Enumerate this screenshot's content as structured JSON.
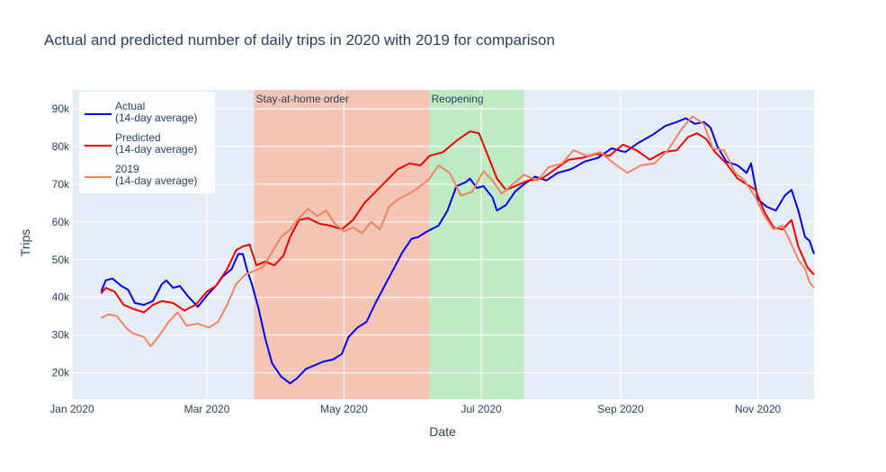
{
  "chart_data": {
    "type": "line",
    "title": "Actual and predicted number of daily trips in 2020 with 2019 for comparison",
    "xlabel": "Date",
    "ylabel": "Trips",
    "xlim": [
      "2020-01-01",
      "2020-11-26"
    ],
    "ylim": [
      13000,
      95000
    ],
    "x_ticks": [
      {
        "date": "2020-01-01",
        "label": "Jan 2020"
      },
      {
        "date": "2020-03-01",
        "label": "Mar 2020"
      },
      {
        "date": "2020-05-01",
        "label": "May 2020"
      },
      {
        "date": "2020-07-01",
        "label": "Jul 2020"
      },
      {
        "date": "2020-09-01",
        "label": "Sep 2020"
      },
      {
        "date": "2020-11-01",
        "label": "Nov 2020"
      }
    ],
    "y_ticks": [
      {
        "value": 20000,
        "label": "20k"
      },
      {
        "value": 30000,
        "label": "30k"
      },
      {
        "value": 40000,
        "label": "40k"
      },
      {
        "value": 50000,
        "label": "50k"
      },
      {
        "value": 60000,
        "label": "60k"
      },
      {
        "value": 70000,
        "label": "70k"
      },
      {
        "value": 80000,
        "label": "80k"
      },
      {
        "value": 90000,
        "label": "90k"
      }
    ],
    "shaded_regions": [
      {
        "label": "Stay-at-home order",
        "start": "2020-03-22",
        "end": "2020-06-08",
        "color": "#f4c4b4"
      },
      {
        "label": "Reopening",
        "start": "2020-06-08",
        "end": "2020-07-20",
        "color": "#bdebc4"
      }
    ],
    "legend_position": "top-left",
    "grid": true,
    "series": [
      {
        "name": "Actual",
        "legend_lines": [
          "Actual",
          "(14-day average)"
        ],
        "color": "#0000ee",
        "points": [
          [
            "2020-01-14",
            41500
          ],
          [
            "2020-01-16",
            44500
          ],
          [
            "2020-01-19",
            45000
          ],
          [
            "2020-01-23",
            43000
          ],
          [
            "2020-01-26",
            42000
          ],
          [
            "2020-01-29",
            38500
          ],
          [
            "2020-02-02",
            38000
          ],
          [
            "2020-02-06",
            39000
          ],
          [
            "2020-02-10",
            43500
          ],
          [
            "2020-02-12",
            44500
          ],
          [
            "2020-02-15",
            42500
          ],
          [
            "2020-02-18",
            43000
          ],
          [
            "2020-02-22",
            40000
          ],
          [
            "2020-02-26",
            37500
          ],
          [
            "2020-03-01",
            40500
          ],
          [
            "2020-03-05",
            43000
          ],
          [
            "2020-03-08",
            45500
          ],
          [
            "2020-03-12",
            47500
          ],
          [
            "2020-03-15",
            51500
          ],
          [
            "2020-03-17",
            51500
          ],
          [
            "2020-03-19",
            47000
          ],
          [
            "2020-03-21",
            43500
          ],
          [
            "2020-03-24",
            37000
          ],
          [
            "2020-03-27",
            29000
          ],
          [
            "2020-03-30",
            22500
          ],
          [
            "2020-04-03",
            19000
          ],
          [
            "2020-04-07",
            17200
          ],
          [
            "2020-04-10",
            18500
          ],
          [
            "2020-04-14",
            21000
          ],
          [
            "2020-04-18",
            22000
          ],
          [
            "2020-04-22",
            23000
          ],
          [
            "2020-04-26",
            23500
          ],
          [
            "2020-04-30",
            25000
          ],
          [
            "2020-05-03",
            29500
          ],
          [
            "2020-05-07",
            32000
          ],
          [
            "2020-05-11",
            33500
          ],
          [
            "2020-05-15",
            38500
          ],
          [
            "2020-05-19",
            43000
          ],
          [
            "2020-05-23",
            47500
          ],
          [
            "2020-05-27",
            52000
          ],
          [
            "2020-05-31",
            55500
          ],
          [
            "2020-06-03",
            56000
          ],
          [
            "2020-06-07",
            57500
          ],
          [
            "2020-06-12",
            59000
          ],
          [
            "2020-06-16",
            63000
          ],
          [
            "2020-06-20",
            69500
          ],
          [
            "2020-06-24",
            70500
          ],
          [
            "2020-06-26",
            71500
          ],
          [
            "2020-06-29",
            69000
          ],
          [
            "2020-07-02",
            69500
          ],
          [
            "2020-07-06",
            66500
          ],
          [
            "2020-07-08",
            63000
          ],
          [
            "2020-07-12",
            64500
          ],
          [
            "2020-07-16",
            68000
          ],
          [
            "2020-07-20",
            70000
          ],
          [
            "2020-07-25",
            72000
          ],
          [
            "2020-07-30",
            71000
          ],
          [
            "2020-08-04",
            73000
          ],
          [
            "2020-08-10",
            74000
          ],
          [
            "2020-08-16",
            76000
          ],
          [
            "2020-08-22",
            77000
          ],
          [
            "2020-08-28",
            79500
          ],
          [
            "2020-09-03",
            78500
          ],
          [
            "2020-09-09",
            81000
          ],
          [
            "2020-09-15",
            83000
          ],
          [
            "2020-09-21",
            85500
          ],
          [
            "2020-09-26",
            86500
          ],
          [
            "2020-09-30",
            87500
          ],
          [
            "2020-10-04",
            86000
          ],
          [
            "2020-10-08",
            86500
          ],
          [
            "2020-10-11",
            85000
          ],
          [
            "2020-10-14",
            80000
          ],
          [
            "2020-10-18",
            76000
          ],
          [
            "2020-10-23",
            75000
          ],
          [
            "2020-10-27",
            73000
          ],
          [
            "2020-10-29",
            75500
          ],
          [
            "2020-11-01",
            66000
          ],
          [
            "2020-11-05",
            64000
          ],
          [
            "2020-11-09",
            63000
          ],
          [
            "2020-11-13",
            67000
          ],
          [
            "2020-11-16",
            68500
          ],
          [
            "2020-11-19",
            63000
          ],
          [
            "2020-11-22",
            56000
          ],
          [
            "2020-11-24",
            55000
          ],
          [
            "2020-11-26",
            51500
          ]
        ]
      },
      {
        "name": "Predicted",
        "legend_lines": [
          "Predicted",
          "(14-day average)"
        ],
        "color": "#ee0000",
        "points": [
          [
            "2020-01-14",
            41000
          ],
          [
            "2020-01-16",
            42500
          ],
          [
            "2020-01-20",
            41500
          ],
          [
            "2020-01-24",
            38000
          ],
          [
            "2020-01-28",
            37000
          ],
          [
            "2020-02-02",
            36000
          ],
          [
            "2020-02-06",
            38000
          ],
          [
            "2020-02-10",
            39000
          ],
          [
            "2020-02-15",
            38500
          ],
          [
            "2020-02-20",
            36500
          ],
          [
            "2020-02-25",
            38000
          ],
          [
            "2020-03-01",
            41500
          ],
          [
            "2020-03-05",
            43000
          ],
          [
            "2020-03-10",
            47500
          ],
          [
            "2020-03-14",
            52500
          ],
          [
            "2020-03-17",
            53500
          ],
          [
            "2020-03-20",
            54000
          ],
          [
            "2020-03-23",
            48500
          ],
          [
            "2020-03-27",
            49500
          ],
          [
            "2020-03-31",
            48500
          ],
          [
            "2020-04-04",
            51000
          ],
          [
            "2020-04-07",
            56000
          ],
          [
            "2020-04-11",
            60500
          ],
          [
            "2020-04-15",
            61000
          ],
          [
            "2020-04-20",
            59500
          ],
          [
            "2020-04-25",
            59000
          ],
          [
            "2020-04-30",
            58000
          ],
          [
            "2020-05-05",
            60500
          ],
          [
            "2020-05-10",
            65000
          ],
          [
            "2020-05-15",
            68000
          ],
          [
            "2020-05-20",
            71000
          ],
          [
            "2020-05-25",
            74000
          ],
          [
            "2020-05-30",
            75500
          ],
          [
            "2020-06-04",
            75000
          ],
          [
            "2020-06-08",
            77500
          ],
          [
            "2020-06-14",
            78500
          ],
          [
            "2020-06-20",
            81500
          ],
          [
            "2020-06-26",
            84000
          ],
          [
            "2020-06-30",
            83500
          ],
          [
            "2020-07-04",
            77500
          ],
          [
            "2020-07-08",
            71500
          ],
          [
            "2020-07-12",
            68500
          ],
          [
            "2020-07-16",
            69500
          ],
          [
            "2020-07-22",
            71000
          ],
          [
            "2020-07-28",
            71500
          ],
          [
            "2020-08-03",
            74000
          ],
          [
            "2020-08-09",
            76500
          ],
          [
            "2020-08-15",
            77000
          ],
          [
            "2020-08-21",
            78000
          ],
          [
            "2020-08-27",
            77500
          ],
          [
            "2020-09-02",
            80500
          ],
          [
            "2020-09-08",
            79000
          ],
          [
            "2020-09-14",
            76500
          ],
          [
            "2020-09-20",
            78500
          ],
          [
            "2020-09-26",
            79000
          ],
          [
            "2020-10-01",
            82500
          ],
          [
            "2020-10-05",
            83500
          ],
          [
            "2020-10-09",
            82000
          ],
          [
            "2020-10-13",
            78500
          ],
          [
            "2020-10-18",
            75500
          ],
          [
            "2020-10-23",
            71500
          ],
          [
            "2020-10-27",
            70000
          ],
          [
            "2020-10-31",
            68500
          ],
          [
            "2020-11-04",
            62500
          ],
          [
            "2020-11-08",
            58500
          ],
          [
            "2020-11-12",
            58000
          ],
          [
            "2020-11-16",
            60500
          ],
          [
            "2020-11-19",
            53500
          ],
          [
            "2020-11-23",
            48000
          ],
          [
            "2020-11-26",
            46000
          ]
        ]
      },
      {
        "name": "2019",
        "legend_lines": [
          "2019",
          "(14-day average)"
        ],
        "color": "#f4845f",
        "points": [
          [
            "2020-01-14",
            34500
          ],
          [
            "2020-01-17",
            35500
          ],
          [
            "2020-01-21",
            35000
          ],
          [
            "2020-01-25",
            32000
          ],
          [
            "2020-01-28",
            30500
          ],
          [
            "2020-02-02",
            29500
          ],
          [
            "2020-02-05",
            27000
          ],
          [
            "2020-02-09",
            30000
          ],
          [
            "2020-02-13",
            33500
          ],
          [
            "2020-02-17",
            36000
          ],
          [
            "2020-02-21",
            32500
          ],
          [
            "2020-02-26",
            33000
          ],
          [
            "2020-03-02",
            32000
          ],
          [
            "2020-03-06",
            33500
          ],
          [
            "2020-03-10",
            38000
          ],
          [
            "2020-03-14",
            43500
          ],
          [
            "2020-03-18",
            46000
          ],
          [
            "2020-03-22",
            47000
          ],
          [
            "2020-03-26",
            48000
          ],
          [
            "2020-03-30",
            52000
          ],
          [
            "2020-04-03",
            56000
          ],
          [
            "2020-04-07",
            58000
          ],
          [
            "2020-04-11",
            61000
          ],
          [
            "2020-04-15",
            63500
          ],
          [
            "2020-04-19",
            61500
          ],
          [
            "2020-04-23",
            63000
          ],
          [
            "2020-04-27",
            59500
          ],
          [
            "2020-05-01",
            57500
          ],
          [
            "2020-05-05",
            58500
          ],
          [
            "2020-05-09",
            57000
          ],
          [
            "2020-05-13",
            60000
          ],
          [
            "2020-05-17",
            58000
          ],
          [
            "2020-05-21",
            64000
          ],
          [
            "2020-05-25",
            66000
          ],
          [
            "2020-05-30",
            67500
          ],
          [
            "2020-06-04",
            69500
          ],
          [
            "2020-06-08",
            71500
          ],
          [
            "2020-06-12",
            75000
          ],
          [
            "2020-06-17",
            73000
          ],
          [
            "2020-06-22",
            67000
          ],
          [
            "2020-06-27",
            68000
          ],
          [
            "2020-07-02",
            73500
          ],
          [
            "2020-07-06",
            71000
          ],
          [
            "2020-07-10",
            67500
          ],
          [
            "2020-07-15",
            70000
          ],
          [
            "2020-07-20",
            72500
          ],
          [
            "2020-07-26",
            71000
          ],
          [
            "2020-07-31",
            74500
          ],
          [
            "2020-08-06",
            75500
          ],
          [
            "2020-08-11",
            79000
          ],
          [
            "2020-08-17",
            77500
          ],
          [
            "2020-08-23",
            78500
          ],
          [
            "2020-08-29",
            75500
          ],
          [
            "2020-09-04",
            73000
          ],
          [
            "2020-09-10",
            75000
          ],
          [
            "2020-09-16",
            75500
          ],
          [
            "2020-09-22",
            79000
          ],
          [
            "2020-09-28",
            84500
          ],
          [
            "2020-10-03",
            88000
          ],
          [
            "2020-10-08",
            86000
          ],
          [
            "2020-10-12",
            79500
          ],
          [
            "2020-10-17",
            79000
          ],
          [
            "2020-10-22",
            73000
          ],
          [
            "2020-10-26",
            71000
          ],
          [
            "2020-10-31",
            66500
          ],
          [
            "2020-11-04",
            61500
          ],
          [
            "2020-11-08",
            58000
          ],
          [
            "2020-11-12",
            59000
          ],
          [
            "2020-11-16",
            54000
          ],
          [
            "2020-11-19",
            50000
          ],
          [
            "2020-11-22",
            47500
          ],
          [
            "2020-11-24",
            44000
          ],
          [
            "2020-11-26",
            42500
          ]
        ]
      }
    ]
  }
}
